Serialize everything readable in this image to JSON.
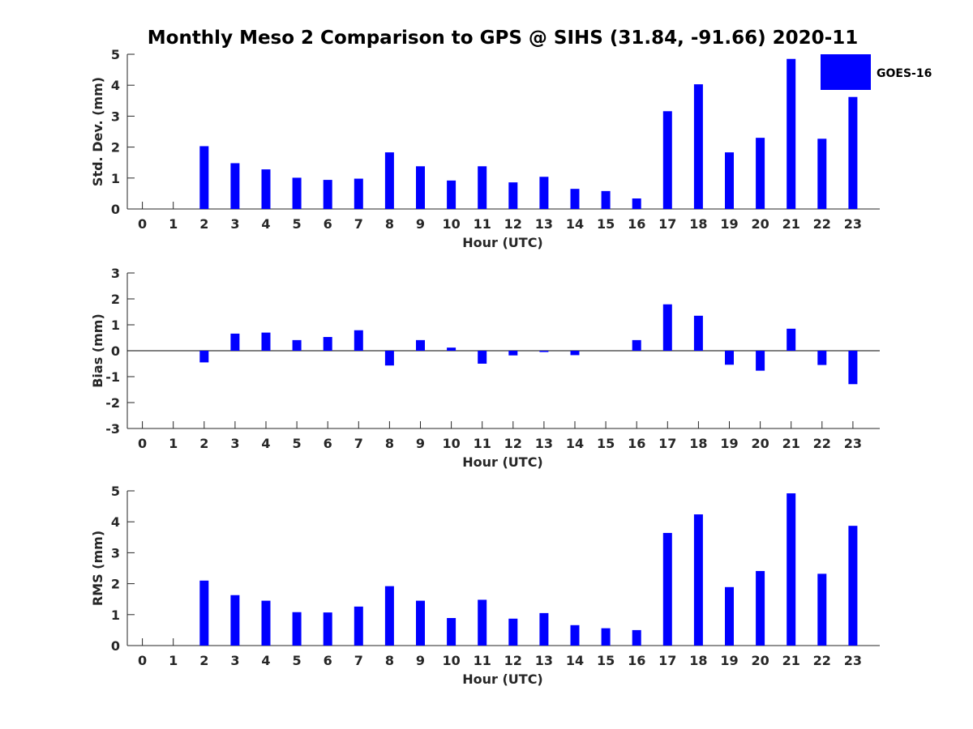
{
  "chart_data": {
    "type": "bar",
    "title": "Monthly Meso 2 Comparison to GPS @ SIHS (31.84, -91.66) 2020-11",
    "legend": {
      "label": "GOES-16",
      "color": "#0000ff",
      "placement": "top-right"
    },
    "categories": [
      "0",
      "1",
      "2",
      "3",
      "4",
      "5",
      "6",
      "7",
      "8",
      "9",
      "10",
      "11",
      "12",
      "13",
      "14",
      "15",
      "16",
      "17",
      "18",
      "19",
      "20",
      "21",
      "22",
      "23"
    ],
    "panels": [
      {
        "name": "std-dev",
        "ylabel": "Std. Dev. (mm)",
        "xlabel": "Hour (UTC)",
        "ylim": [
          0,
          5
        ],
        "yticks": [
          0,
          1,
          2,
          3,
          4,
          5
        ],
        "series": [
          {
            "name": "GOES-16",
            "values": [
              0,
              0,
              2.03,
              1.48,
              1.28,
              1.01,
              0.94,
              0.98,
              1.83,
              1.38,
              0.92,
              1.38,
              0.86,
              1.04,
              0.65,
              0.58,
              0.34,
              3.16,
              4.03,
              1.83,
              2.3,
              4.85,
              2.27,
              3.62
            ]
          }
        ]
      },
      {
        "name": "bias",
        "ylabel": "Bias (mm)",
        "xlabel": "Hour (UTC)",
        "ylim": [
          -3,
          3
        ],
        "yticks": [
          -3,
          -2,
          -1,
          0,
          1,
          2,
          3
        ],
        "series": [
          {
            "name": "GOES-16",
            "values": [
              0,
              0,
              -0.45,
              0.66,
              0.7,
              0.41,
              0.53,
              0.79,
              -0.57,
              0.41,
              0.12,
              -0.5,
              -0.18,
              -0.05,
              -0.17,
              0,
              0.41,
              1.79,
              1.35,
              -0.54,
              -0.77,
              0.85,
              -0.55,
              -1.29
            ]
          }
        ]
      },
      {
        "name": "rms",
        "ylabel": "RMS (mm)",
        "xlabel": "Hour (UTC)",
        "ylim": [
          0,
          5
        ],
        "yticks": [
          0,
          1,
          2,
          3,
          4,
          5
        ],
        "series": [
          {
            "name": "GOES-16",
            "values": [
              0,
              0,
              2.1,
              1.63,
              1.45,
              1.08,
              1.07,
              1.26,
              1.92,
              1.45,
              0.89,
              1.48,
              0.87,
              1.05,
              0.66,
              0.56,
              0.5,
              3.64,
              4.24,
              1.89,
              2.41,
              4.92,
              2.32,
              3.87
            ]
          }
        ]
      }
    ]
  }
}
